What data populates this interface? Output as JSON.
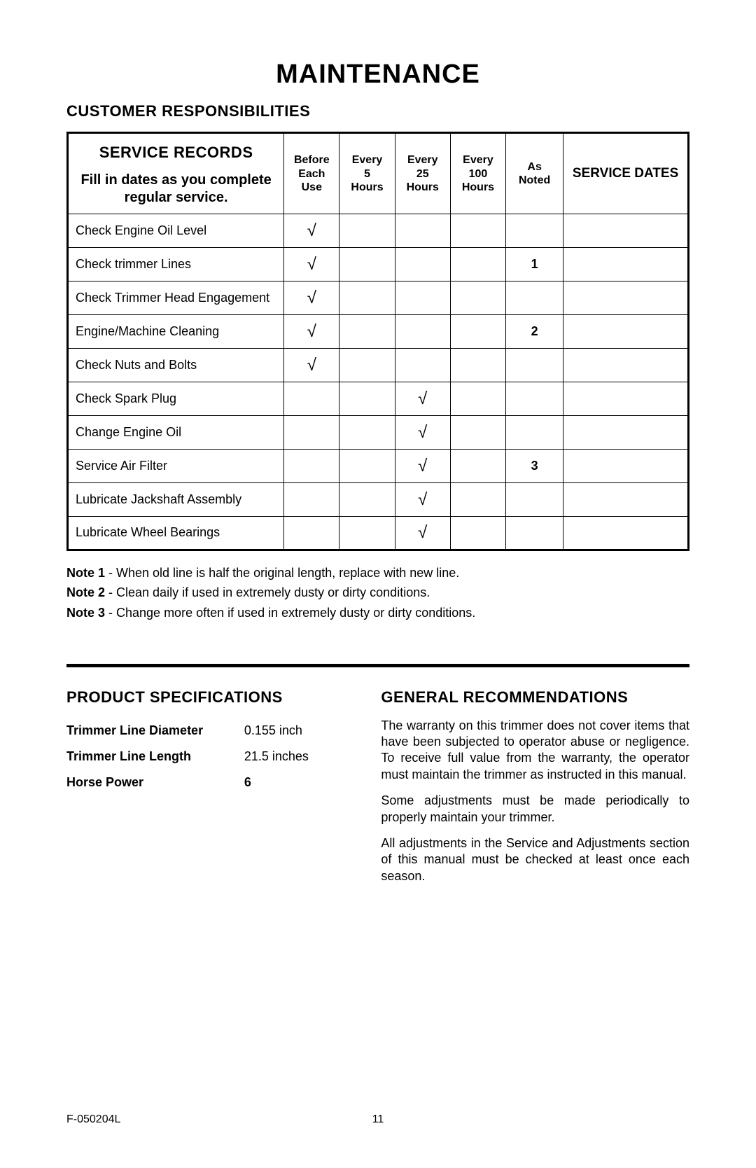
{
  "page": {
    "title": "MAINTENANCE",
    "section1": "CUSTOMER RESPONSIBILITIES",
    "doc_code": "F-050204L",
    "page_number": "11"
  },
  "service_table": {
    "type": "table",
    "header": {
      "records_title": "SERVICE RECORDS",
      "records_sub": "Fill in dates as you complete regular service.",
      "cols": [
        "Before\nEach\nUse",
        "Every\n5\nHours",
        "Every\n25\nHours",
        "Every\n100\nHours",
        "As\nNoted",
        "SERVICE DATES"
      ]
    },
    "checkmark": "√",
    "rows": [
      {
        "label": "Check Engine Oil Level",
        "marks": [
          "√",
          "",
          "",
          "",
          ""
        ],
        "note": ""
      },
      {
        "label": "Check trimmer Lines",
        "marks": [
          "√",
          "",
          "",
          "",
          ""
        ],
        "note": "1"
      },
      {
        "label": "Check Trimmer Head Engagement",
        "marks": [
          "√",
          "",
          "",
          "",
          ""
        ],
        "note": ""
      },
      {
        "label": "Engine/Machine Cleaning",
        "marks": [
          "√",
          "",
          "",
          "",
          ""
        ],
        "note": "2"
      },
      {
        "label": "Check Nuts and Bolts",
        "marks": [
          "√",
          "",
          "",
          "",
          ""
        ],
        "note": ""
      },
      {
        "label": "Check Spark Plug",
        "marks": [
          "",
          "",
          "√",
          "",
          ""
        ],
        "note": ""
      },
      {
        "label": "Change Engine Oil",
        "marks": [
          "",
          "",
          "√",
          "",
          ""
        ],
        "note": ""
      },
      {
        "label": "Service Air Filter",
        "marks": [
          "",
          "",
          "√",
          "",
          ""
        ],
        "note": "3"
      },
      {
        "label": "Lubricate Jackshaft Assembly",
        "marks": [
          "",
          "",
          "√",
          "",
          ""
        ],
        "note": ""
      },
      {
        "label": "Lubricate Wheel Bearings",
        "marks": [
          "",
          "",
          "√",
          "",
          ""
        ],
        "note": ""
      }
    ],
    "border_color": "#000000",
    "background_color": "#ffffff",
    "header_fontsize": 16,
    "body_fontsize": 18
  },
  "notes": {
    "items": [
      {
        "label": "Note 1",
        "text": " - When old line is half the original length, replace with new line."
      },
      {
        "label": "Note 2",
        "text": " - Clean daily if used in extremely dusty or dirty conditions."
      },
      {
        "label": "Note 3",
        "text": " - Change more often if used in extremely dusty or dirty conditions."
      }
    ]
  },
  "specs": {
    "heading": "PRODUCT SPECIFICATIONS",
    "rows": [
      {
        "label": "Trimmer Line Diameter",
        "value": "0.155 inch"
      },
      {
        "label": "Trimmer Line Length",
        "value": "21.5 inches"
      },
      {
        "label": "Horse Power",
        "value": "6"
      }
    ]
  },
  "recommendations": {
    "heading": "GENERAL RECOMMENDATIONS",
    "paragraphs": [
      "The warranty on this trimmer does not cover items that have been subjected to operator abuse or negligence. To receive full value from the warranty, the operator must maintain the trimmer as instructed in this manual.",
      "Some adjustments must be made periodically to properly maintain your trimmer.",
      "All adjustments in the Service and Adjustments section of this manual must be checked at least once each season."
    ]
  },
  "colors": {
    "text": "#000000",
    "background": "#ffffff",
    "border": "#000000"
  },
  "typography": {
    "title_fontsize": 38,
    "heading_fontsize": 22,
    "body_fontsize": 18,
    "font_family": "Arial"
  }
}
